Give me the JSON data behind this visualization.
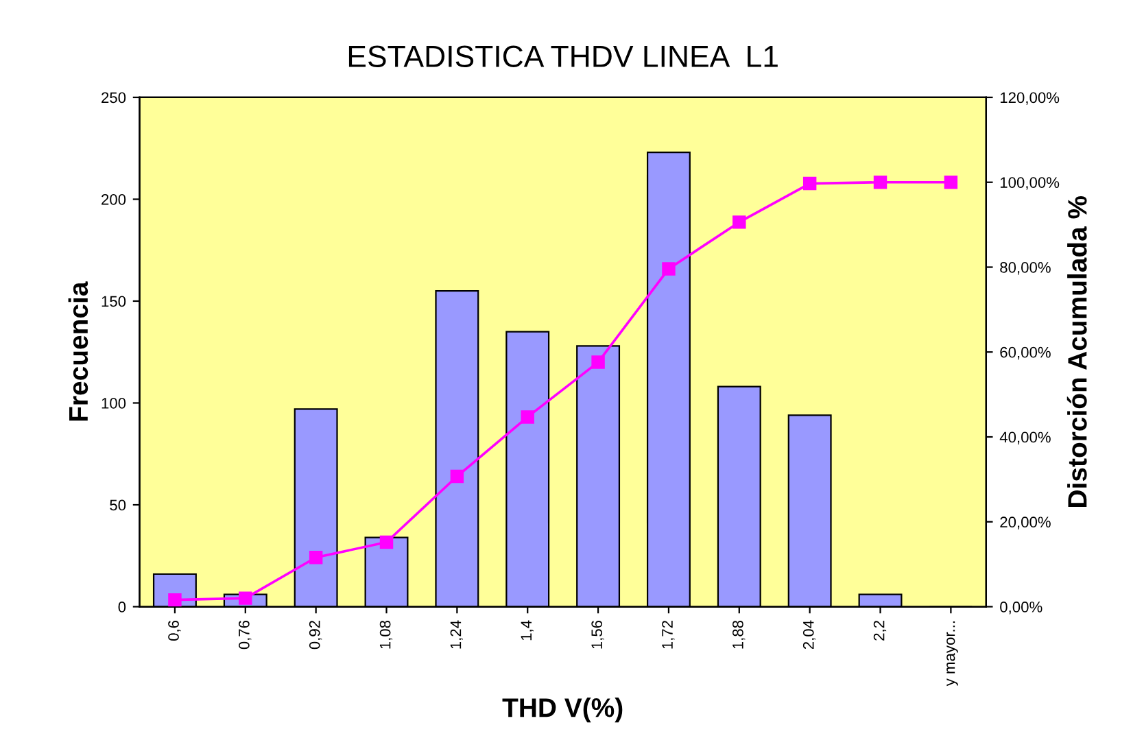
{
  "chart_data": {
    "type": "bar",
    "title": "ESTADISTICA THDV LINEA  L1",
    "xlabel": "THD V(%)",
    "ylabel": "Frecuencia",
    "y2label": "Distorción Acumulada %",
    "categories": [
      "0,6",
      "0,76",
      "0,92",
      "1,08",
      "1,24",
      "1,4",
      "1,56",
      "1,72",
      "1,88",
      "2,04",
      "2,2",
      "y mayor..."
    ],
    "series": [
      {
        "color": "#9999ff",
        "values": [
          16,
          6,
          97,
          34,
          155,
          135,
          128,
          223,
          108,
          94,
          6,
          0
        ]
      },
      {
        "type": "line",
        "axis": "y2",
        "color": "#ff00ff",
        "marker": "square",
        "line_style": "solid",
        "values": [
          1.6,
          2.0,
          11.6,
          15.2,
          30.7,
          44.7,
          57.6,
          79.6,
          90.6,
          99.7,
          100,
          100
        ]
      }
    ],
    "ylim": [
      0,
      250
    ],
    "yticks": [
      0,
      50,
      100,
      150,
      200,
      250
    ],
    "y2lim": [
      0,
      120
    ],
    "y2ticks": [
      {
        "value": 0,
        "label": "0,00%"
      },
      {
        "value": 20,
        "label": "20,00%"
      },
      {
        "value": 40,
        "label": "40,00%"
      },
      {
        "value": 60,
        "label": "60,00%"
      },
      {
        "value": 80,
        "label": "80,00%"
      },
      {
        "value": 100,
        "label": "100,00%"
      },
      {
        "value": 120,
        "label": "120,00%"
      }
    ],
    "grid": false,
    "legend": false
  }
}
